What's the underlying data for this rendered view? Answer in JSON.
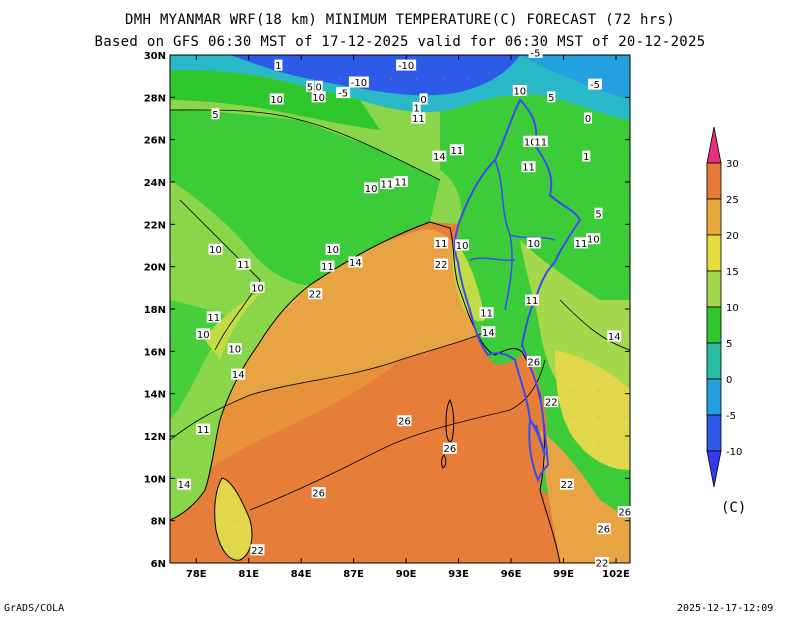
{
  "title": {
    "line1": "DMH MYANMAR WRF(18 km) MINIMUM TEMPERATURE(C) FORECAST (72 hrs)",
    "line2": "Based on GFS 06:30 MST of 17-12-2025 valid for 06:30 MST of 20-12-2025"
  },
  "footer": {
    "left": "GrADS/COLA",
    "right": "2025-12-17-12:09"
  },
  "map": {
    "lon_ticks": [
      "78E",
      "81E",
      "84E",
      "87E",
      "90E",
      "93E",
      "96E",
      "99E",
      "102E"
    ],
    "lat_ticks": [
      "6N",
      "8N",
      "10N",
      "12N",
      "14N",
      "16N",
      "18N",
      "20N",
      "22N",
      "24N",
      "26N",
      "28N",
      "30N"
    ],
    "contour_labels": [
      {
        "text": "1",
        "lon": 82.7,
        "lat": 29.5
      },
      {
        "text": "-10",
        "lon": 87.3,
        "lat": 28.7
      },
      {
        "text": "-10",
        "lon": 90.0,
        "lat": 29.5
      },
      {
        "text": "-5",
        "lon": 97.4,
        "lat": 30.1
      },
      {
        "text": "-5",
        "lon": 100.8,
        "lat": 28.6
      },
      {
        "text": "5",
        "lon": 84.5,
        "lat": 28.5
      },
      {
        "text": "0",
        "lon": 85.0,
        "lat": 28.5
      },
      {
        "text": "10",
        "lon": 85.0,
        "lat": 28.0
      },
      {
        "text": "-5",
        "lon": 86.4,
        "lat": 28.2
      },
      {
        "text": "10",
        "lon": 96.5,
        "lat": 28.3
      },
      {
        "text": "5",
        "lon": 98.3,
        "lat": 28.0
      },
      {
        "text": "5",
        "lon": 79.1,
        "lat": 27.2
      },
      {
        "text": "10",
        "lon": 82.6,
        "lat": 27.9
      },
      {
        "text": "1",
        "lon": 90.6,
        "lat": 27.5
      },
      {
        "text": "11",
        "lon": 90.7,
        "lat": 27.0
      },
      {
        "text": "0",
        "lon": 91.0,
        "lat": 27.9
      },
      {
        "text": "0",
        "lon": 100.4,
        "lat": 27.0
      },
      {
        "text": "10",
        "lon": 97.1,
        "lat": 25.9
      },
      {
        "text": "11",
        "lon": 97.7,
        "lat": 25.9
      },
      {
        "text": "14",
        "lon": 91.9,
        "lat": 25.2
      },
      {
        "text": "11",
        "lon": 92.9,
        "lat": 25.5
      },
      {
        "text": "1",
        "lon": 100.3,
        "lat": 25.2
      },
      {
        "text": "11",
        "lon": 97.0,
        "lat": 24.7
      },
      {
        "text": "10",
        "lon": 88.0,
        "lat": 23.7
      },
      {
        "text": "11",
        "lon": 88.9,
        "lat": 23.9
      },
      {
        "text": "11",
        "lon": 89.7,
        "lat": 24.0
      },
      {
        "text": "5",
        "lon": 101.0,
        "lat": 22.5
      },
      {
        "text": "11",
        "lon": 92.0,
        "lat": 21.1
      },
      {
        "text": "10",
        "lon": 93.2,
        "lat": 21.0
      },
      {
        "text": "10",
        "lon": 97.3,
        "lat": 21.1
      },
      {
        "text": "11",
        "lon": 100.0,
        "lat": 21.1
      },
      {
        "text": "10",
        "lon": 100.7,
        "lat": 21.3
      },
      {
        "text": "10",
        "lon": 79.1,
        "lat": 20.8
      },
      {
        "text": "10",
        "lon": 85.8,
        "lat": 20.8
      },
      {
        "text": "11",
        "lon": 80.7,
        "lat": 20.1
      },
      {
        "text": "11",
        "lon": 85.5,
        "lat": 20.0
      },
      {
        "text": "14",
        "lon": 87.1,
        "lat": 20.2
      },
      {
        "text": "22",
        "lon": 92.0,
        "lat": 20.1
      },
      {
        "text": "10",
        "lon": 81.5,
        "lat": 19.0
      },
      {
        "text": "22",
        "lon": 84.8,
        "lat": 18.7
      },
      {
        "text": "11",
        "lon": 79.0,
        "lat": 17.6
      },
      {
        "text": "11",
        "lon": 94.6,
        "lat": 17.8
      },
      {
        "text": "11",
        "lon": 97.2,
        "lat": 18.4
      },
      {
        "text": "10",
        "lon": 78.4,
        "lat": 16.8
      },
      {
        "text": "14",
        "lon": 94.7,
        "lat": 16.9
      },
      {
        "text": "14",
        "lon": 101.9,
        "lat": 16.7
      },
      {
        "text": "10",
        "lon": 80.2,
        "lat": 16.1
      },
      {
        "text": "14",
        "lon": 80.4,
        "lat": 14.9
      },
      {
        "text": "26",
        "lon": 97.3,
        "lat": 15.5
      },
      {
        "text": "22",
        "lon": 98.3,
        "lat": 13.6
      },
      {
        "text": "26",
        "lon": 89.9,
        "lat": 12.7
      },
      {
        "text": "26",
        "lon": 92.5,
        "lat": 11.4
      },
      {
        "text": "11",
        "lon": 78.4,
        "lat": 12.3
      },
      {
        "text": "14",
        "lon": 77.3,
        "lat": 9.7
      },
      {
        "text": "22",
        "lon": 99.2,
        "lat": 9.7
      },
      {
        "text": "26",
        "lon": 85.0,
        "lat": 9.3
      },
      {
        "text": "26",
        "lon": 102.5,
        "lat": 8.4
      },
      {
        "text": "26",
        "lon": 101.3,
        "lat": 7.6
      },
      {
        "text": "22",
        "lon": 81.5,
        "lat": 6.6
      },
      {
        "text": "22",
        "lon": 101.2,
        "lat": 6.0
      }
    ]
  },
  "colorbar": {
    "levels": [
      "30",
      "25",
      "20",
      "15",
      "10",
      "5",
      "0",
      "-5",
      "-10"
    ],
    "colors": [
      "#e6307c",
      "#e67838",
      "#e8aa3a",
      "#e6dc3c",
      "#a6d84e",
      "#2ec82e",
      "#28bca0",
      "#24a0e0",
      "#2e5ae8",
      "#3838f0"
    ],
    "unit": "(C)"
  },
  "colors": {
    "ocean_warm": "#e67e3a",
    "ocean_mid": "#e8a443",
    "land_green": "#3ccc3a",
    "land_lightgreen": "#8ad64a",
    "land_yellowgreen": "#c2dc46",
    "land_yellow": "#e0d84a",
    "cold_blue": "#2e5ae8",
    "cold_cyan": "#28b8c8",
    "border_blue": "#3a4cf0"
  }
}
